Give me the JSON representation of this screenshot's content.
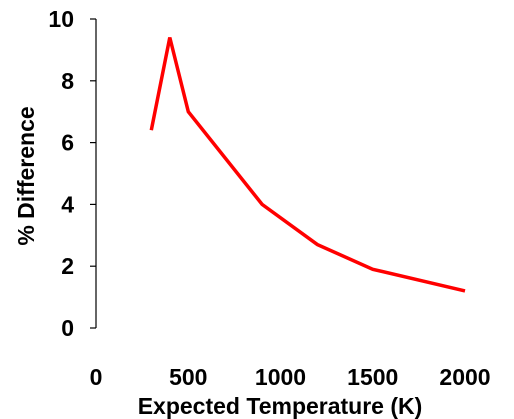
{
  "chart_data": {
    "type": "line",
    "title": "",
    "xlabel": "Expected Temperature (K)",
    "ylabel": "% Difference",
    "xlim": [
      0,
      2000
    ],
    "ylim": [
      0,
      10
    ],
    "xticks": [
      0,
      500,
      1000,
      1500,
      2000
    ],
    "yticks": [
      0,
      2,
      4,
      6,
      8,
      10
    ],
    "xtick_labels": [
      "0",
      "500",
      "1000",
      "1500",
      "2000"
    ],
    "ytick_labels": [
      "0",
      "2",
      "4",
      "6",
      "8",
      "10"
    ],
    "grid": false,
    "legend": "none",
    "series": [
      {
        "color": "#ff0000",
        "x": [
          300,
          400,
          500,
          900,
          1200,
          1500,
          2000
        ],
        "y": [
          6.4,
          9.4,
          7.0,
          4.0,
          2.7,
          1.9,
          1.2
        ]
      }
    ]
  }
}
